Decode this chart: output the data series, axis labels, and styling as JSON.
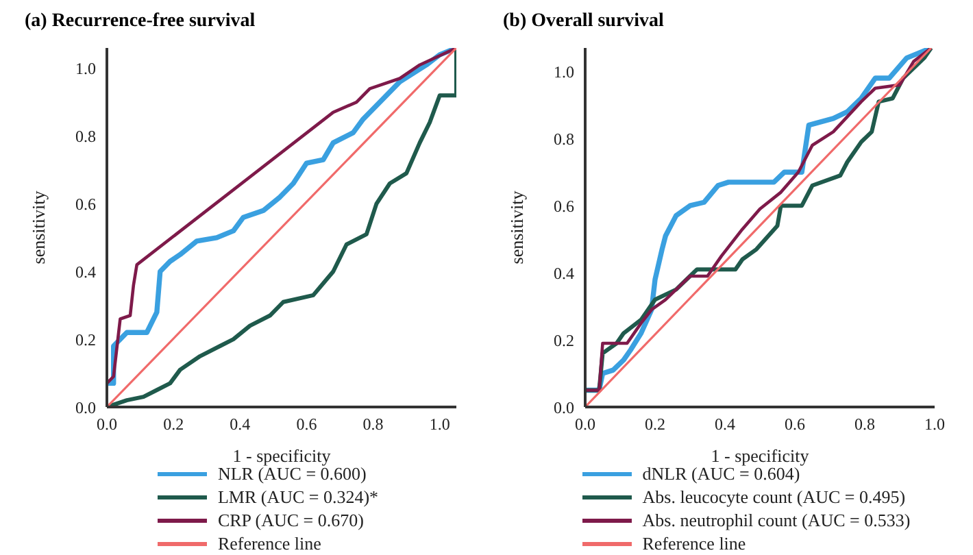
{
  "chart_data": [
    {
      "type": "line",
      "title": "(a) Recurrence-free survival",
      "xlabel": "1 - specificity",
      "ylabel": "sensitivity",
      "xlim": [
        0,
        1.05
      ],
      "ylim": [
        0,
        1.06
      ],
      "xticks": [
        {
          "value": 0,
          "label": "0.0"
        },
        {
          "value": 0.2,
          "label": "0.2"
        },
        {
          "value": 0.4,
          "label": "0.4"
        },
        {
          "value": 0.6,
          "label": "0.6"
        },
        {
          "value": 0.8,
          "label": "0.8"
        },
        {
          "value": 1,
          "label": "1.0"
        }
      ],
      "yticks": [
        {
          "value": 0,
          "label": "0.0"
        },
        {
          "value": 0.2,
          "label": "0.2"
        },
        {
          "value": 0.4,
          "label": "0.4"
        },
        {
          "value": 0.6,
          "label": "0.6"
        },
        {
          "value": 0.8,
          "label": "0.8"
        },
        {
          "value": 1,
          "label": "1.0"
        }
      ],
      "grid": false,
      "legend": "bottom",
      "marker": "none",
      "line_style": "solid",
      "series": [
        {
          "name": "NLR (AUC = 0.600)",
          "color": "#3aa0e0",
          "x": [
            0,
            0.02,
            0.02,
            0.04,
            0.06,
            0.12,
            0.13,
            0.15,
            0.16,
            0.19,
            0.22,
            0.27,
            0.33,
            0.38,
            0.41,
            0.47,
            0.52,
            0.56,
            0.6,
            0.65,
            0.68,
            0.74,
            0.77,
            0.82,
            0.88,
            0.96,
            1.0,
            1.05
          ],
          "values": [
            0.07,
            0.07,
            0.18,
            0.2,
            0.22,
            0.22,
            0.24,
            0.28,
            0.4,
            0.43,
            0.45,
            0.49,
            0.5,
            0.52,
            0.56,
            0.58,
            0.62,
            0.66,
            0.72,
            0.73,
            0.78,
            0.81,
            0.85,
            0.9,
            0.96,
            1.01,
            1.04,
            1.06
          ]
        },
        {
          "name": "LMR (AUC = 0.324)*",
          "color": "#1f5a4c",
          "x": [
            0,
            0.06,
            0.11,
            0.15,
            0.19,
            0.22,
            0.28,
            0.34,
            0.38,
            0.43,
            0.49,
            0.53,
            0.62,
            0.68,
            0.72,
            0.78,
            0.81,
            0.85,
            0.9,
            0.94,
            0.97,
            1.0,
            1.05,
            1.05
          ],
          "values": [
            0,
            0.02,
            0.03,
            0.05,
            0.07,
            0.11,
            0.15,
            0.18,
            0.2,
            0.24,
            0.27,
            0.31,
            0.33,
            0.4,
            0.48,
            0.51,
            0.6,
            0.66,
            0.69,
            0.78,
            0.84,
            0.92,
            0.92,
            1.06
          ]
        },
        {
          "name": "CRP (AUC = 0.670)",
          "color": "#7e1a4a",
          "x": [
            0,
            0.02,
            0.04,
            0.07,
            0.08,
            0.09,
            0.68,
            0.75,
            0.79,
            0.88,
            0.94,
            1.05
          ],
          "values": [
            0.07,
            0.09,
            0.26,
            0.27,
            0.36,
            0.42,
            0.87,
            0.9,
            0.94,
            0.97,
            1.01,
            1.06
          ]
        },
        {
          "name": "Reference line",
          "color": "#f06a6a",
          "x": [
            0,
            1.05
          ],
          "values": [
            0,
            1.06
          ]
        }
      ]
    },
    {
      "type": "line",
      "title": "(b) Overall survival",
      "xlabel": "1 - specificity",
      "ylabel": "sensitivity",
      "xlim": [
        0,
        1.0
      ],
      "ylim": [
        0,
        1.07
      ],
      "xticks": [
        {
          "value": 0,
          "label": "0.0"
        },
        {
          "value": 0.2,
          "label": "0.2"
        },
        {
          "value": 0.4,
          "label": "0.4"
        },
        {
          "value": 0.6,
          "label": "0.6"
        },
        {
          "value": 0.8,
          "label": "0.8"
        },
        {
          "value": 1,
          "label": "1.0"
        }
      ],
      "yticks": [
        {
          "value": 0,
          "label": "0.0"
        },
        {
          "value": 0.2,
          "label": "0.2"
        },
        {
          "value": 0.4,
          "label": "0.4"
        },
        {
          "value": 0.6,
          "label": "0.6"
        },
        {
          "value": 0.8,
          "label": "0.8"
        },
        {
          "value": 1,
          "label": "1.0"
        }
      ],
      "grid": false,
      "legend": "bottom",
      "marker": "none",
      "line_style": "solid",
      "series": [
        {
          "name": "dNLR (AUC = 0.604)",
          "color": "#3aa0e0",
          "x": [
            0,
            0.04,
            0.05,
            0.08,
            0.11,
            0.13,
            0.16,
            0.19,
            0.2,
            0.22,
            0.23,
            0.26,
            0.3,
            0.34,
            0.38,
            0.41,
            0.54,
            0.57,
            0.62,
            0.64,
            0.71,
            0.75,
            0.79,
            0.83,
            0.87,
            0.92,
            0.99
          ],
          "values": [
            0.05,
            0.05,
            0.1,
            0.11,
            0.14,
            0.17,
            0.22,
            0.29,
            0.38,
            0.47,
            0.51,
            0.57,
            0.6,
            0.61,
            0.66,
            0.67,
            0.67,
            0.7,
            0.7,
            0.84,
            0.86,
            0.88,
            0.92,
            0.98,
            0.98,
            1.04,
            1.07
          ]
        },
        {
          "name": "Abs. leucocyte count (AUC = 0.495)",
          "color": "#1f5a4c",
          "x": [
            0,
            0.04,
            0.05,
            0.09,
            0.11,
            0.16,
            0.2,
            0.26,
            0.3,
            0.32,
            0.43,
            0.45,
            0.49,
            0.55,
            0.56,
            0.62,
            0.65,
            0.73,
            0.75,
            0.79,
            0.82,
            0.84,
            0.88,
            0.91,
            0.97,
            0.99
          ],
          "values": [
            0.05,
            0.05,
            0.16,
            0.19,
            0.22,
            0.26,
            0.32,
            0.35,
            0.39,
            0.41,
            0.41,
            0.44,
            0.47,
            0.54,
            0.6,
            0.6,
            0.66,
            0.69,
            0.73,
            0.79,
            0.82,
            0.91,
            0.92,
            0.98,
            1.04,
            1.07
          ]
        },
        {
          "name": "Abs. neutrophil count (AUC = 0.533)",
          "color": "#7e1a4a",
          "x": [
            0,
            0.04,
            0.05,
            0.12,
            0.16,
            0.19,
            0.23,
            0.3,
            0.35,
            0.39,
            0.45,
            0.5,
            0.56,
            0.61,
            0.65,
            0.71,
            0.79,
            0.83,
            0.9,
            0.94,
            0.99
          ],
          "values": [
            0.05,
            0.05,
            0.19,
            0.19,
            0.25,
            0.29,
            0.32,
            0.39,
            0.39,
            0.45,
            0.53,
            0.59,
            0.64,
            0.7,
            0.78,
            0.82,
            0.91,
            0.95,
            0.96,
            1.03,
            1.07
          ]
        },
        {
          "name": "Reference line",
          "color": "#f06a6a",
          "x": [
            0,
            0.99
          ],
          "values": [
            0,
            1.07
          ]
        }
      ]
    }
  ]
}
